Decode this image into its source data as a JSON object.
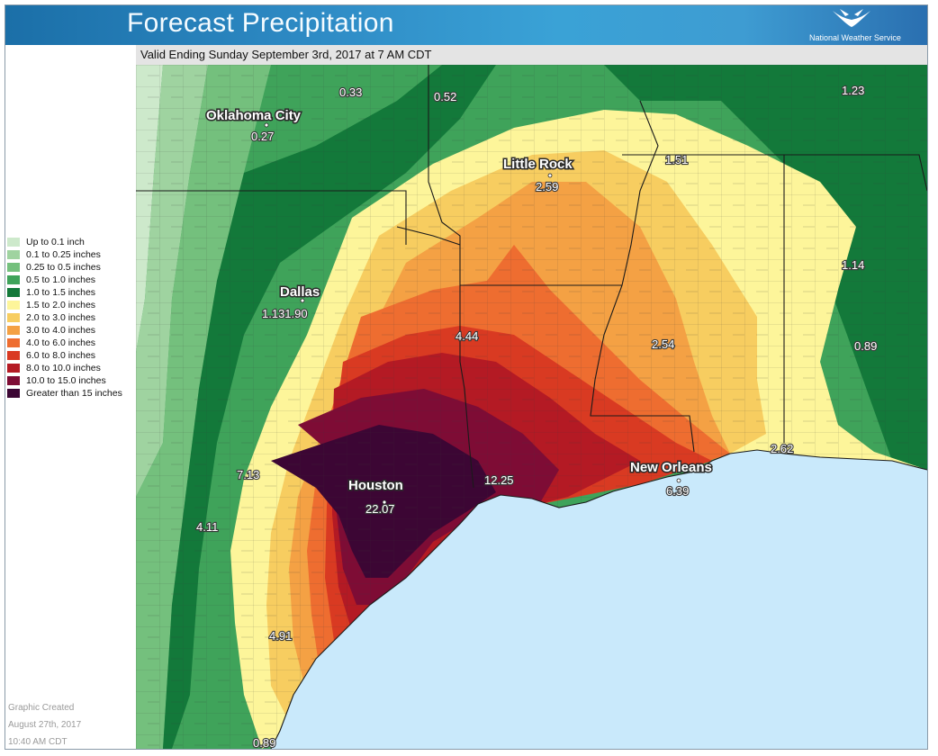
{
  "header": {
    "title": "Forecast Precipitation",
    "agency": "National Weather Service"
  },
  "valid_time": "Valid Ending Sunday September 3rd, 2017 at 7 AM CDT",
  "legend": [
    {
      "label": "Up to 0.1 inch",
      "color": "#cde9cb"
    },
    {
      "label": "0.1 to 0.25 inches",
      "color": "#9fd3a0"
    },
    {
      "label": "0.25 to 0.5 inches",
      "color": "#74c07d"
    },
    {
      "label": "0.5 to 1.0 inches",
      "color": "#3fa35a"
    },
    {
      "label": "1.0 to 1.5 inches",
      "color": "#13793a"
    },
    {
      "label": "1.5 to 2.0 inches",
      "color": "#fdf59a"
    },
    {
      "label": "2.0 to 3.0 inches",
      "color": "#f7cd60"
    },
    {
      "label": "3.0 to 4.0 inches",
      "color": "#f4a144"
    },
    {
      "label": "4.0 to 6.0 inches",
      "color": "#ee6d30"
    },
    {
      "label": "6.0 to 8.0 inches",
      "color": "#d93a22"
    },
    {
      "label": "8.0 to 10.0 inches",
      "color": "#b41a24"
    },
    {
      "label": "10.0 to 15.0 inches",
      "color": "#7e0c35"
    },
    {
      "label": "Greater than 15 inches",
      "color": "#3c0634"
    }
  ],
  "cities": [
    {
      "name": "Oklahoma City",
      "amount": "0.27"
    },
    {
      "name": "Little Rock",
      "amount": "2.59"
    },
    {
      "name": "Dallas",
      "amount": "1.131.90"
    },
    {
      "name": "Houston",
      "amount": "22.07"
    },
    {
      "name": "New Orleans",
      "amount": "6.39"
    }
  ],
  "amounts": [
    "0.33",
    "0.52",
    "1.23",
    "1.51",
    "1.14",
    "0.89",
    "4.44",
    "2.54",
    "2.62",
    "12.25",
    "7.13",
    "4.11",
    "4.91",
    "0.89"
  ],
  "created": {
    "line1": "Graphic Created",
    "line2": "August 27th, 2017",
    "line3": "10:40 AM CDT"
  },
  "colors": {
    "gulf": "#c9e9fb",
    "land_default": "#3fa35a"
  }
}
